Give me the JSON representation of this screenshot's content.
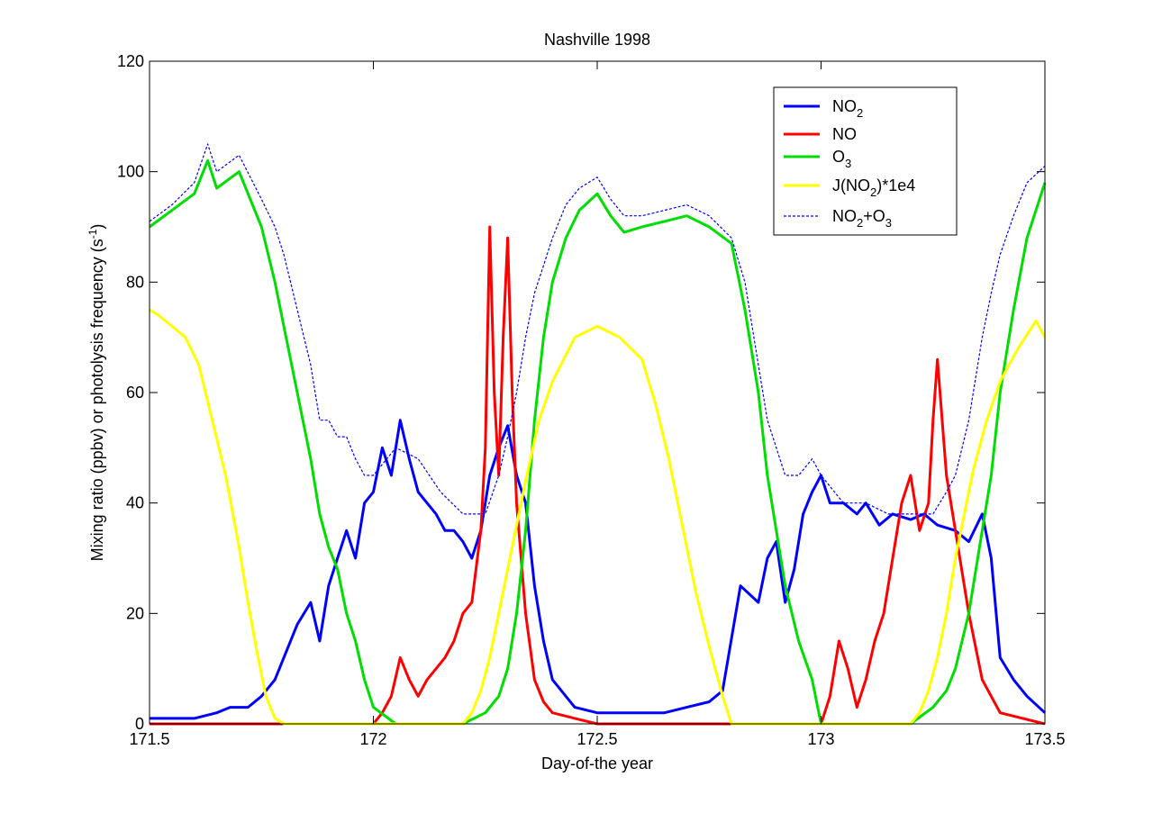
{
  "chart_data": {
    "type": "line",
    "title": "Nashville  1998",
    "xlabel": "Day-of-the year",
    "ylabel_main": "Mixing ratio  (ppbv) or photolysis frequency (s",
    "ylabel_sup": "-1",
    "ylabel_close": ")",
    "xlim": [
      171.5,
      173.5
    ],
    "ylim": [
      0,
      120
    ],
    "xticks": [
      "171.5",
      "172",
      "172.5",
      "173",
      "173.5"
    ],
    "xtick_values": [
      171.5,
      172.0,
      172.5,
      173.0,
      173.5
    ],
    "yticks": [
      "0",
      "20",
      "40",
      "60",
      "80",
      "100",
      "120"
    ],
    "ytick_values": [
      0,
      20,
      40,
      60,
      80,
      100,
      120
    ],
    "grid": false,
    "legend_position": "top-right",
    "legend": [
      {
        "base": "NO",
        "sub": "2",
        "tail": ""
      },
      {
        "base": "NO",
        "sub": "",
        "tail": ""
      },
      {
        "base": "O",
        "sub": "3",
        "tail": ""
      },
      {
        "base": "J(NO",
        "sub": "2",
        "tail": ")*1e4"
      },
      {
        "base": "NO",
        "sub": "2",
        "tail": "+O",
        "sub2": "3"
      }
    ],
    "series": [
      {
        "color": "#0000ff",
        "dash": false,
        "x": [
          171.5,
          171.55,
          171.6,
          171.65,
          171.68,
          171.72,
          171.75,
          171.78,
          171.8,
          171.83,
          171.86,
          171.88,
          171.9,
          171.92,
          171.94,
          171.96,
          171.98,
          172.0,
          172.02,
          172.04,
          172.06,
          172.08,
          172.1,
          172.12,
          172.14,
          172.16,
          172.18,
          172.2,
          172.22,
          172.24,
          172.26,
          172.28,
          172.3,
          172.32,
          172.34,
          172.36,
          172.38,
          172.4,
          172.45,
          172.5,
          172.55,
          172.6,
          172.65,
          172.7,
          172.75,
          172.78,
          172.82,
          172.86,
          172.88,
          172.9,
          172.92,
          172.94,
          172.96,
          172.98,
          173.0,
          173.02,
          173.05,
          173.08,
          173.1,
          173.13,
          173.16,
          173.2,
          173.23,
          173.26,
          173.3,
          173.33,
          173.36,
          173.38,
          173.4,
          173.43,
          173.46,
          173.5
        ],
        "y": [
          1,
          1,
          1,
          2,
          3,
          3,
          5,
          8,
          12,
          18,
          22,
          15,
          25,
          30,
          35,
          30,
          40,
          42,
          50,
          45,
          55,
          48,
          42,
          40,
          38,
          35,
          35,
          33,
          30,
          35,
          45,
          50,
          54,
          45,
          40,
          25,
          15,
          8,
          3,
          2,
          2,
          2,
          2,
          3,
          4,
          6,
          25,
          22,
          30,
          33,
          22,
          28,
          38,
          42,
          45,
          40,
          40,
          38,
          40,
          36,
          38,
          37,
          38,
          36,
          35,
          33,
          38,
          30,
          12,
          8,
          5,
          2
        ]
      },
      {
        "color": "#ff0000",
        "dash": false,
        "x": [
          171.5,
          171.7,
          171.9,
          172.0,
          172.02,
          172.04,
          172.06,
          172.08,
          172.1,
          172.12,
          172.14,
          172.16,
          172.18,
          172.2,
          172.22,
          172.24,
          172.25,
          172.26,
          172.27,
          172.28,
          172.29,
          172.3,
          172.31,
          172.32,
          172.34,
          172.36,
          172.38,
          172.4,
          172.45,
          172.5,
          172.6,
          172.8,
          173.0,
          173.02,
          173.04,
          173.06,
          173.08,
          173.1,
          173.12,
          173.14,
          173.16,
          173.18,
          173.2,
          173.22,
          173.24,
          173.25,
          173.26,
          173.28,
          173.3,
          173.33,
          173.36,
          173.4,
          173.5
        ],
        "y": [
          0,
          0,
          0,
          0,
          2,
          5,
          12,
          8,
          5,
          8,
          10,
          12,
          15,
          20,
          22,
          35,
          50,
          90,
          60,
          45,
          70,
          88,
          60,
          40,
          20,
          8,
          4,
          2,
          1,
          0,
          0,
          0,
          0,
          5,
          15,
          10,
          3,
          8,
          15,
          20,
          30,
          40,
          45,
          35,
          40,
          55,
          66,
          45,
          35,
          20,
          8,
          2,
          0
        ]
      },
      {
        "color": "#00dd00",
        "dash": false,
        "x": [
          171.5,
          171.55,
          171.6,
          171.63,
          171.65,
          171.7,
          171.75,
          171.78,
          171.8,
          171.83,
          171.86,
          171.88,
          171.9,
          171.92,
          171.94,
          171.96,
          171.98,
          172.0,
          172.05,
          172.1,
          172.15,
          172.2,
          172.25,
          172.28,
          172.3,
          172.32,
          172.34,
          172.36,
          172.38,
          172.4,
          172.43,
          172.46,
          172.5,
          172.53,
          172.56,
          172.6,
          172.65,
          172.7,
          172.75,
          172.8,
          172.83,
          172.86,
          172.88,
          172.9,
          172.92,
          172.95,
          172.98,
          173.0,
          173.05,
          173.1,
          173.15,
          173.2,
          173.25,
          173.28,
          173.3,
          173.33,
          173.36,
          173.38,
          173.4,
          173.43,
          173.46,
          173.5
        ],
        "y": [
          90,
          93,
          96,
          102,
          97,
          100,
          90,
          80,
          72,
          60,
          48,
          38,
          32,
          28,
          20,
          15,
          8,
          3,
          0,
          0,
          0,
          0,
          2,
          5,
          10,
          20,
          35,
          55,
          70,
          80,
          88,
          93,
          96,
          92,
          89,
          90,
          91,
          92,
          90,
          87,
          75,
          60,
          45,
          35,
          25,
          15,
          8,
          0,
          0,
          0,
          0,
          0,
          3,
          6,
          10,
          20,
          35,
          45,
          60,
          75,
          88,
          98
        ]
      },
      {
        "color": "#ffff00",
        "dash": false,
        "x": [
          171.5,
          171.52,
          171.55,
          171.58,
          171.61,
          171.64,
          171.67,
          171.7,
          171.72,
          171.74,
          171.76,
          171.78,
          171.8,
          172.0,
          172.15,
          172.2,
          172.22,
          172.24,
          172.26,
          172.28,
          172.3,
          172.32,
          172.34,
          172.37,
          172.4,
          172.45,
          172.5,
          172.55,
          172.6,
          172.63,
          172.66,
          172.69,
          172.72,
          172.75,
          172.78,
          172.8,
          173.0,
          173.15,
          173.2,
          173.22,
          173.24,
          173.26,
          173.28,
          173.3,
          173.32,
          173.34,
          173.37,
          173.4,
          173.44,
          173.48,
          173.5
        ],
        "y": [
          75,
          74,
          72,
          70,
          65,
          55,
          45,
          32,
          22,
          13,
          5,
          1,
          0,
          0,
          0,
          0,
          2,
          6,
          12,
          20,
          28,
          36,
          44,
          55,
          62,
          70,
          72,
          70,
          66,
          58,
          48,
          36,
          24,
          14,
          5,
          0,
          0,
          0,
          0,
          2,
          6,
          12,
          20,
          30,
          38,
          46,
          55,
          62,
          68,
          73,
          70
        ]
      },
      {
        "color": "#0000ff",
        "dash": true,
        "x": [
          171.5,
          171.55,
          171.6,
          171.63,
          171.65,
          171.7,
          171.75,
          171.78,
          171.8,
          171.83,
          171.86,
          171.88,
          171.9,
          171.92,
          171.94,
          171.96,
          171.98,
          172.0,
          172.05,
          172.1,
          172.15,
          172.2,
          172.25,
          172.28,
          172.3,
          172.32,
          172.34,
          172.36,
          172.38,
          172.4,
          172.43,
          172.46,
          172.5,
          172.53,
          172.56,
          172.6,
          172.65,
          172.7,
          172.75,
          172.8,
          172.83,
          172.86,
          172.88,
          172.9,
          172.92,
          172.95,
          172.98,
          173.0,
          173.05,
          173.1,
          173.15,
          173.2,
          173.25,
          173.28,
          173.3,
          173.33,
          173.36,
          173.38,
          173.4,
          173.43,
          173.46,
          173.5
        ],
        "y": [
          91,
          94,
          98,
          105,
          100,
          103,
          95,
          90,
          85,
          75,
          65,
          55,
          55,
          52,
          52,
          48,
          45,
          45,
          50,
          48,
          42,
          38,
          38,
          45,
          52,
          60,
          70,
          78,
          83,
          88,
          94,
          97,
          99,
          95,
          92,
          92,
          93,
          94,
          92,
          88,
          80,
          65,
          55,
          50,
          45,
          45,
          48,
          45,
          40,
          40,
          38,
          38,
          38,
          42,
          45,
          55,
          70,
          78,
          85,
          92,
          98,
          101
        ]
      }
    ]
  }
}
